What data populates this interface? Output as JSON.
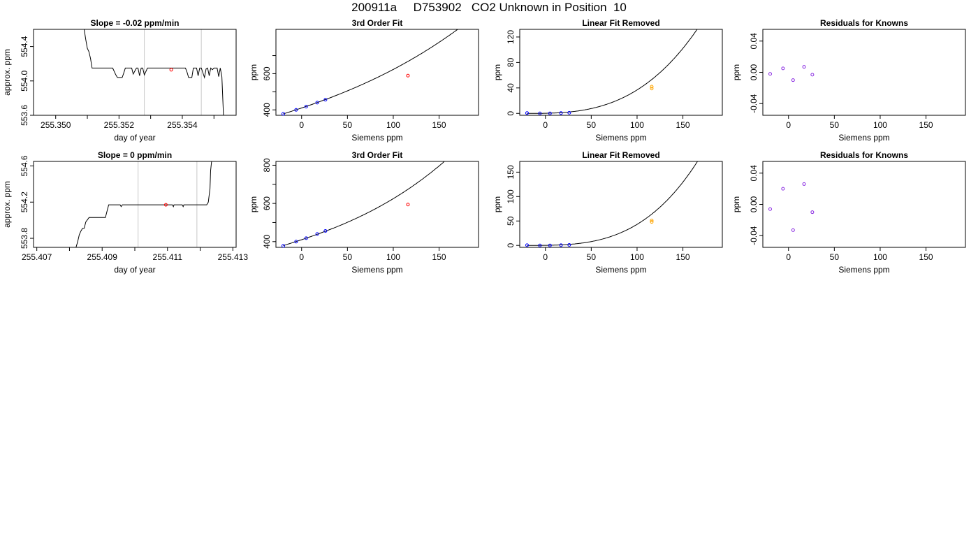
{
  "page": {
    "title": "200911a     D753902   CO2 Unknown in Position  10"
  },
  "chart_data": [
    {
      "id": "trace-1",
      "type": "line",
      "title": "Slope =  -0.02  ppm/min",
      "xlabel": "day of year",
      "ylabel": "approx. ppm",
      "xlim": [
        255.3493,
        255.3557
      ],
      "ylim": [
        553.6,
        554.6
      ],
      "xticks": [
        "255.350",
        "255.352",
        "255.354"
      ],
      "xticks_values": [
        255.35,
        255.352,
        255.354
      ],
      "xticks_minor": [
        255.351,
        255.353,
        255.355
      ],
      "yticks": [
        "553.6",
        "554.0",
        "554.4"
      ],
      "yticks_values": [
        553.6,
        554.0,
        554.4
      ],
      "vlines": [
        255.3528,
        255.3546
      ],
      "series": [
        {
          "color": "#000000",
          "x": [
            255.3509,
            255.35095,
            255.351,
            255.35105,
            255.3511,
            255.35115,
            255.3512,
            255.3514,
            255.35155,
            255.35165,
            255.3518,
            255.3519,
            255.35195,
            255.3521,
            255.35215,
            255.3522,
            255.3524,
            255.35245,
            255.35255,
            255.3526,
            255.35265,
            255.3527,
            255.35275,
            255.3528,
            255.3529,
            255.3531,
            255.3533,
            255.3535,
            255.3538,
            255.354,
            255.3541,
            255.35415,
            255.3542,
            255.3543,
            255.35435,
            255.35445,
            255.3545,
            255.35455,
            255.3546,
            255.3547,
            255.35475,
            255.3548,
            255.35485,
            255.3549,
            255.35495,
            255.355,
            255.35505,
            255.3551,
            255.35515,
            255.3552,
            255.35525,
            255.3553
          ],
          "y": [
            554.6,
            554.48,
            554.38,
            554.34,
            554.26,
            554.15,
            554.15,
            554.15,
            554.15,
            554.15,
            554.15,
            554.07,
            554.04,
            554.04,
            554.09,
            554.15,
            554.15,
            554.08,
            554.15,
            554.15,
            554.06,
            554.15,
            554.15,
            554.07,
            554.15,
            554.15,
            554.15,
            554.15,
            554.15,
            554.15,
            554.15,
            554.1,
            554.04,
            554.04,
            554.15,
            554.15,
            554.06,
            554.15,
            554.15,
            554.04,
            554.14,
            554.15,
            554.06,
            554.15,
            554.13,
            554.15,
            554.15,
            554.15,
            554.05,
            554.15,
            554.05,
            553.6
          ]
        }
      ],
      "points": [
        {
          "x": 255.35365,
          "y": 554.13,
          "color": "#ff0000"
        }
      ]
    },
    {
      "id": "fit-1",
      "type": "line",
      "title": "3rd Order Fit",
      "xlabel": "Siemens ppm",
      "ylabel": "ppm",
      "xlim": [
        -28,
        193
      ],
      "ylim": [
        370,
        845
      ],
      "xticks": [
        "0",
        "50",
        "100",
        "150"
      ],
      "xticks_values": [
        0,
        50,
        100,
        150
      ],
      "yticks": [
        "400",
        "600"
      ],
      "yticks_values": [
        400,
        600
      ],
      "yticks_minor": [
        500,
        700
      ],
      "curve": {
        "type": "poly3",
        "coef": [
          410.5,
          1.7,
          0.0033,
          1e-05
        ],
        "x_range": [
          -20,
          185
        ]
      },
      "points": [
        {
          "x": -20,
          "y": 378,
          "color": "#0000ff"
        },
        {
          "x": -6,
          "y": 400,
          "color": "#0000ff"
        },
        {
          "x": 5,
          "y": 418,
          "color": "#0000ff"
        },
        {
          "x": 17,
          "y": 440,
          "color": "#0000ff"
        },
        {
          "x": 26,
          "y": 456,
          "color": "#0000ff"
        },
        {
          "x": 116,
          "y": 589,
          "color": "#ff0000"
        }
      ]
    },
    {
      "id": "linfit-1",
      "type": "line",
      "title": "Linear Fit Removed",
      "xlabel": "Siemens ppm",
      "ylabel": "ppm",
      "xlim": [
        -28,
        193
      ],
      "ylim": [
        -3,
        132
      ],
      "xticks": [
        "0",
        "50",
        "100",
        "150"
      ],
      "xticks_values": [
        0,
        50,
        100,
        150
      ],
      "yticks": [
        "0",
        "40",
        "80",
        "120"
      ],
      "yticks_values": [
        0,
        40,
        80,
        120
      ],
      "curve": {
        "type": "power",
        "a": 2.98e-05,
        "p": 2.93,
        "x_range": [
          -20,
          185
        ]
      },
      "points": [
        {
          "x": -20,
          "y": 0.5,
          "color": "#0000ff"
        },
        {
          "x": -6,
          "y": 0,
          "color": "#0000ff"
        },
        {
          "x": 5,
          "y": 0,
          "color": "#0000ff"
        },
        {
          "x": 17,
          "y": 0.5,
          "color": "#0000ff"
        },
        {
          "x": 26,
          "y": 1,
          "color": "#0000ff"
        },
        {
          "x": 116,
          "y": 42,
          "color": "#ffa500"
        },
        {
          "x": 116,
          "y": 39,
          "color": "#ffa500"
        }
      ]
    },
    {
      "id": "resid-1",
      "type": "scatter",
      "title": "Residuals for Knowns",
      "xlabel": "Siemens ppm",
      "ylabel": "ppm",
      "xlim": [
        -28,
        193
      ],
      "ylim": [
        -0.055,
        0.055
      ],
      "xticks": [
        "0",
        "50",
        "100",
        "150"
      ],
      "xticks_values": [
        0,
        50,
        100,
        150
      ],
      "yticks": [
        "-0.04",
        "0.00",
        "0.04"
      ],
      "yticks_values": [
        -0.04,
        0.0,
        0.04
      ],
      "points": [
        {
          "x": -20,
          "y": -0.002,
          "color": "#8a2be2"
        },
        {
          "x": -6,
          "y": 0.005,
          "color": "#8a2be2"
        },
        {
          "x": 5,
          "y": -0.01,
          "color": "#8a2be2"
        },
        {
          "x": 17,
          "y": 0.007,
          "color": "#8a2be2"
        },
        {
          "x": 26,
          "y": -0.003,
          "color": "#8a2be2"
        }
      ]
    },
    {
      "id": "trace-2",
      "type": "line",
      "title": "Slope =  0  ppm/min",
      "xlabel": "day of year",
      "ylabel": "approx. ppm",
      "xlim": [
        255.4069,
        255.4131
      ],
      "ylim": [
        553.7,
        554.65
      ],
      "xticks": [
        "255.407",
        "255.409",
        "255.411",
        "255.413"
      ],
      "xticks_values": [
        255.407,
        255.409,
        255.411,
        255.413
      ],
      "xticks_minor": [
        255.408,
        255.41,
        255.412
      ],
      "yticks": [
        "553.8",
        "554.2",
        "554.6"
      ],
      "yticks_values": [
        553.8,
        554.2,
        554.6
      ],
      "vlines": [
        255.4101,
        255.4119
      ],
      "series": [
        {
          "color": "#000000",
          "x": [
            255.4082,
            255.40825,
            255.4083,
            255.40835,
            255.4084,
            255.40845,
            255.4085,
            255.4086,
            255.4088,
            255.4091,
            255.40915,
            255.4092,
            255.4094,
            255.40955,
            255.40958,
            255.40962,
            255.41,
            255.4103,
            255.4108,
            255.41115,
            255.41118,
            255.4112,
            255.41145,
            255.41148,
            255.4115,
            255.4122,
            255.41225,
            255.4123,
            255.41232,
            255.41235
          ],
          "y": [
            553.7,
            553.76,
            553.84,
            553.88,
            553.91,
            553.91,
            553.98,
            554.03,
            554.03,
            554.03,
            554.1,
            554.17,
            554.17,
            554.17,
            554.15,
            554.17,
            554.17,
            554.17,
            554.17,
            554.17,
            554.15,
            554.17,
            554.17,
            554.15,
            554.17,
            554.17,
            554.2,
            554.35,
            554.55,
            554.65
          ]
        }
      ],
      "points": [
        {
          "x": 255.41095,
          "y": 554.17,
          "color": "#ff0000"
        }
      ]
    },
    {
      "id": "fit-2",
      "type": "line",
      "title": "3rd Order Fit",
      "xlabel": "Siemens ppm",
      "ylabel": "ppm",
      "xlim": [
        -28,
        193
      ],
      "ylim": [
        370,
        820
      ],
      "xticks": [
        "0",
        "50",
        "100",
        "150"
      ],
      "xticks_values": [
        0,
        50,
        100,
        150
      ],
      "yticks": [
        "400",
        "600",
        "800"
      ],
      "yticks_values": [
        400,
        600,
        800
      ],
      "yticks_minor": [
        500,
        700
      ],
      "curve": {
        "type": "poly3",
        "coef": [
          410,
          1.6,
          0.0035,
          2e-05
        ],
        "x_range": [
          -20,
          185
        ]
      },
      "points": [
        {
          "x": -20,
          "y": 378,
          "color": "#0000ff"
        },
        {
          "x": -6,
          "y": 400,
          "color": "#0000ff"
        },
        {
          "x": 5,
          "y": 418,
          "color": "#0000ff"
        },
        {
          "x": 17,
          "y": 440,
          "color": "#0000ff"
        },
        {
          "x": 26,
          "y": 456,
          "color": "#0000ff"
        },
        {
          "x": 116,
          "y": 594,
          "color": "#ff0000"
        }
      ]
    },
    {
      "id": "linfit-2",
      "type": "line",
      "title": "Linear Fit Removed",
      "xlabel": "Siemens ppm",
      "ylabel": "ppm",
      "xlim": [
        -28,
        193
      ],
      "ylim": [
        -4,
        172
      ],
      "xticks": [
        "0",
        "50",
        "100",
        "150"
      ],
      "xticks_values": [
        0,
        50,
        100,
        150
      ],
      "yticks": [
        "0",
        "50",
        "100",
        "150"
      ],
      "yticks_values": [
        0,
        50,
        100,
        150
      ],
      "curve": {
        "type": "power",
        "a": 1.16e-05,
        "p": 3.16,
        "x_range": [
          -20,
          185
        ]
      },
      "points": [
        {
          "x": -20,
          "y": 0.5,
          "color": "#0000ff"
        },
        {
          "x": -6,
          "y": 0,
          "color": "#0000ff"
        },
        {
          "x": 5,
          "y": 0,
          "color": "#0000ff"
        },
        {
          "x": 17,
          "y": 0.5,
          "color": "#0000ff"
        },
        {
          "x": 26,
          "y": 1,
          "color": "#0000ff"
        },
        {
          "x": 116,
          "y": 51,
          "color": "#ffa500"
        },
        {
          "x": 116,
          "y": 48,
          "color": "#ffa500"
        }
      ]
    },
    {
      "id": "resid-2",
      "type": "scatter",
      "title": "Residuals for Knowns",
      "xlabel": "Siemens ppm",
      "ylabel": "ppm",
      "xlim": [
        -28,
        193
      ],
      "ylim": [
        -0.055,
        0.055
      ],
      "xticks": [
        "0",
        "50",
        "100",
        "150"
      ],
      "xticks_values": [
        0,
        50,
        100,
        150
      ],
      "yticks": [
        "-0.04",
        "0.00",
        "0.04"
      ],
      "yticks_values": [
        -0.04,
        0.0,
        0.04
      ],
      "points": [
        {
          "x": -20,
          "y": -0.006,
          "color": "#8a2be2"
        },
        {
          "x": -6,
          "y": 0.02,
          "color": "#8a2be2"
        },
        {
          "x": 5,
          "y": -0.033,
          "color": "#8a2be2"
        },
        {
          "x": 17,
          "y": 0.026,
          "color": "#8a2be2"
        },
        {
          "x": 26,
          "y": -0.01,
          "color": "#8a2be2"
        }
      ]
    }
  ]
}
